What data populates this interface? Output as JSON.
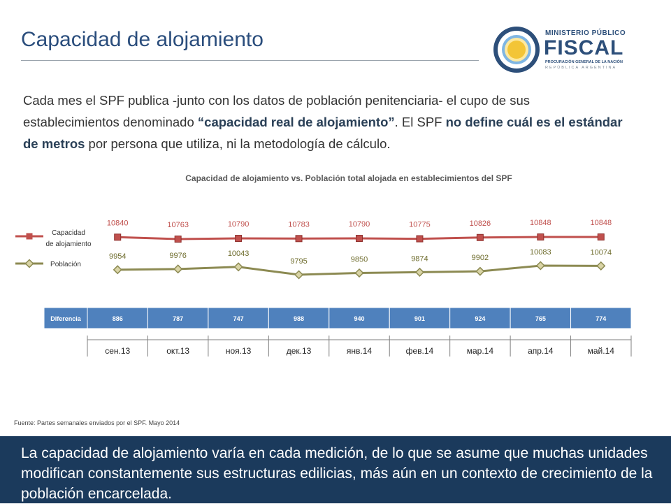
{
  "slide": {
    "title": "Capacidad de alojamiento",
    "intro": [
      {
        "text": "Cada mes el SPF publica -junto con los datos de población penitenciaria- el cupo de sus establecimientos denominado ",
        "bold": false
      },
      {
        "text": "“capacidad real de alojamiento”",
        "bold": true
      },
      {
        "text": ". El SPF ",
        "bold": false
      },
      {
        "text": "no define cuál es el estándar de metros",
        "bold": true
      },
      {
        "text": " por persona que utiliza, ni la metodología de cálculo.",
        "bold": false
      }
    ],
    "source": "Fuente: Partes semanales enviados por el SPF. Mayo 2014",
    "conclusion": "La capacidad de alojamiento varía en cada medición, de lo que se asume que muchas unidades modifican constantemente sus estructuras edilicias, más aún en un contexto de crecimiento de la población encarcelada."
  },
  "logo": {
    "line1": "MINISTERIO PÚBLICO",
    "line2": "FISCAL",
    "line3": "PROCURACIÓN GENERAL DE LA NACIÓN",
    "line4": "REPÚBLICA ARGENTINA",
    "colors": {
      "navy": "#2d4f7a",
      "light_blue": "#7fb6e3",
      "sun": "#f3c536"
    }
  },
  "chart_data": {
    "type": "line",
    "title": "Capacidad de alojamiento vs. Población total alojada en establecimientos del SPF",
    "categories": [
      "сен.13",
      "окт.13",
      "ноя.13",
      "дек.13",
      "янв.14",
      "фев.14",
      "мар.14",
      "апр.14",
      "май.14"
    ],
    "series": [
      {
        "name": "Capacidad de alojamiento",
        "legend_lines": [
          "Capacidad",
          "de alojamiento"
        ],
        "color": "#c0504d",
        "marker": "square",
        "values": [
          10840,
          10763,
          10790,
          10783,
          10790,
          10775,
          10826,
          10848,
          10848
        ]
      },
      {
        "name": "Población",
        "legend_lines": [
          "Población"
        ],
        "color": "#8c8a52",
        "marker": "diamond",
        "values": [
          9954,
          9976,
          10043,
          9795,
          9850,
          9874,
          9902,
          10083,
          10074
        ]
      }
    ],
    "table": {
      "label": "Diferencia",
      "values": [
        886,
        787,
        747,
        988,
        940,
        901,
        924,
        765,
        774
      ],
      "color": "#4f81bd"
    },
    "legend_position": "left",
    "grid": false
  }
}
